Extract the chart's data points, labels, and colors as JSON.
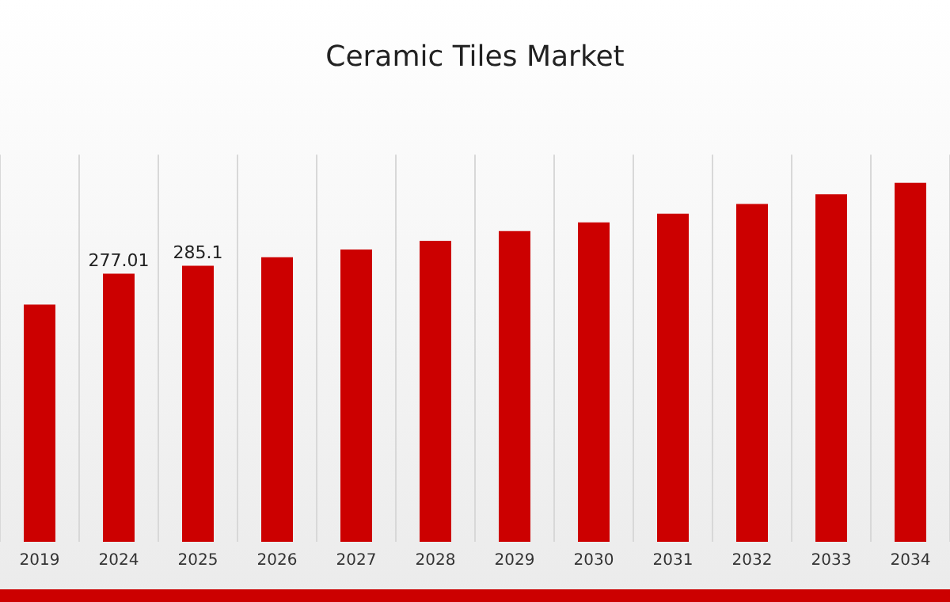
{
  "chart_data": {
    "type": "bar",
    "title": "Ceramic Tiles Market",
    "categories": [
      "2019",
      "2024",
      "2025",
      "2026",
      "2027",
      "2028",
      "2029",
      "2030",
      "2031",
      "2032",
      "2033",
      "2034"
    ],
    "values": [
      245,
      277.01,
      285.1,
      294,
      302,
      311,
      321,
      330,
      339,
      349,
      359,
      371
    ],
    "value_labels": [
      null,
      "277.01",
      "285.1",
      null,
      null,
      null,
      null,
      null,
      null,
      null,
      null,
      null
    ],
    "color": "#cc0000",
    "grid": "x",
    "tick_labels": "x"
  }
}
